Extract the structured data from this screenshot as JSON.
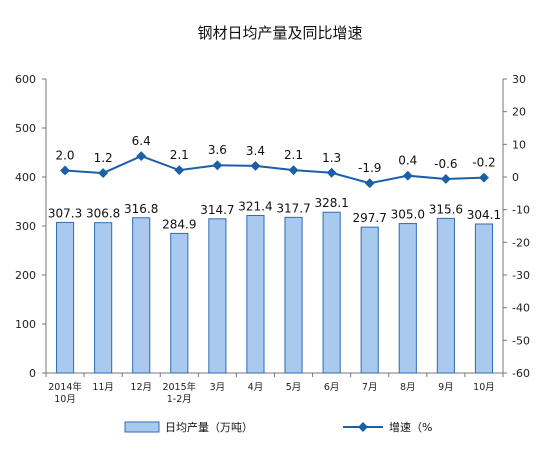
{
  "chart_data": {
    "type": "bar",
    "title": "钢材日均产量及同比增速",
    "categories": [
      [
        "2014年",
        "10月"
      ],
      [
        "11月"
      ],
      [
        "12月"
      ],
      [
        "2015年",
        "1-2月"
      ],
      [
        "3月"
      ],
      [
        "4月"
      ],
      [
        "5月"
      ],
      [
        "6月"
      ],
      [
        "7月"
      ],
      [
        "8月"
      ],
      [
        "9月"
      ],
      [
        "10月"
      ]
    ],
    "series": [
      {
        "name": "日均产量（万吨）",
        "type": "bar",
        "axis": "left",
        "color": "#a9c9ee",
        "values": [
          307.3,
          306.8,
          316.8,
          284.9,
          314.7,
          321.4,
          317.7,
          328.1,
          297.7,
          305.0,
          315.6,
          304.1
        ],
        "labels": [
          "307.3",
          "306.8",
          "316.8",
          "284.9",
          "314.7",
          "321.4",
          "317.7",
          "328.1",
          "297.7",
          "305.0",
          "315.6",
          "304.1"
        ]
      },
      {
        "name": "增速（%",
        "type": "line",
        "axis": "right",
        "color": "#1b5fa6",
        "values": [
          2.0,
          1.2,
          6.4,
          2.1,
          3.6,
          3.4,
          2.1,
          1.3,
          -1.9,
          0.4,
          -0.6,
          -0.2
        ],
        "labels": [
          "2.0",
          "1.2",
          "6.4",
          "2.1",
          "3.6",
          "3.4",
          "2.1",
          "1.3",
          "-1.9",
          "0.4",
          "-0.6",
          "-0.2"
        ]
      }
    ],
    "y_left": {
      "min": 0,
      "max": 600,
      "step": 100,
      "ticks": [
        "0",
        "100",
        "200",
        "300",
        "400",
        "500",
        "600"
      ]
    },
    "y_right": {
      "min": -60,
      "max": 30,
      "step": 10,
      "ticks": [
        "-60",
        "-50",
        "-40",
        "-30",
        "-20",
        "-10",
        "0",
        "10",
        "20",
        "30"
      ]
    },
    "grid": false,
    "legend_position": "bottom"
  }
}
